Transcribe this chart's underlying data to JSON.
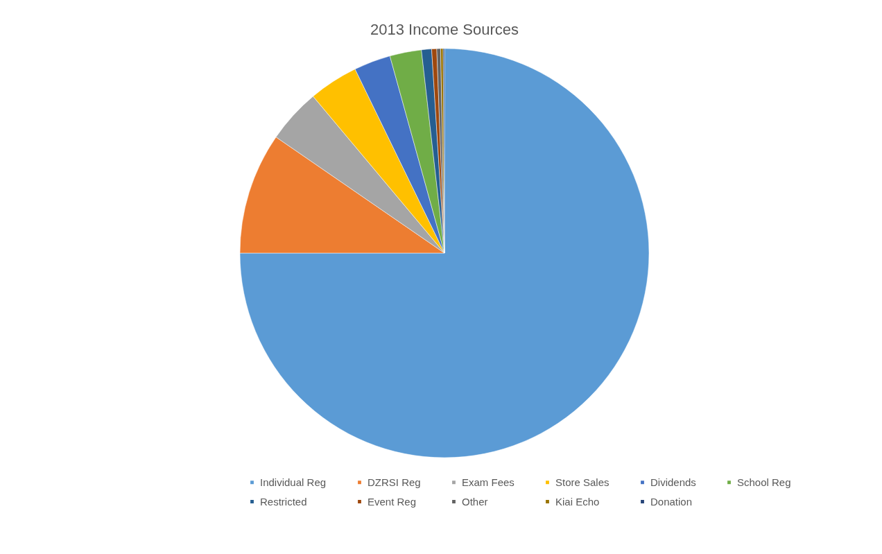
{
  "chart_data": {
    "type": "pie",
    "title": "2013 Income Sources",
    "categories": [
      "Individual Reg",
      "DZRSI Reg",
      "Exam Fees",
      "Store Sales",
      "Dividends",
      "School Reg",
      "Restricted",
      "Event Reg",
      "Other",
      "Kiai Echo",
      "Donation"
    ],
    "values": [
      75,
      9.6,
      4.3,
      3.9,
      2.9,
      2.5,
      0.8,
      0.4,
      0.3,
      0.2,
      0.1
    ],
    "colors": [
      "#5b9bd5",
      "#ed7d31",
      "#a5a5a5",
      "#ffc000",
      "#4472c4",
      "#70ad47",
      "#255e91",
      "#9e480e",
      "#636363",
      "#997300",
      "#264478"
    ],
    "legend": "bottom"
  }
}
